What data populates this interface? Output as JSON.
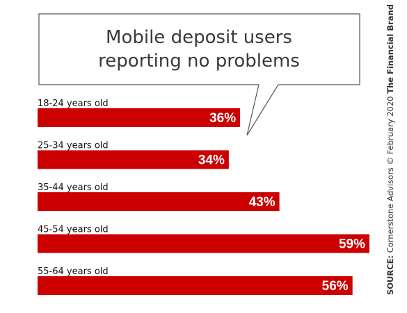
{
  "chart_data": {
    "type": "bar",
    "orientation": "horizontal",
    "title_lines": [
      "Mobile deposit users",
      "reporting no problems"
    ],
    "categories": [
      "18-24 years old",
      "25-34 years old",
      "35-44 years old",
      "45-54 years old",
      "55-64 years old"
    ],
    "values": [
      36,
      34,
      43,
      59,
      56
    ],
    "value_labels": [
      "36%",
      "34%",
      "43%",
      "59%",
      "56%"
    ],
    "xlim": [
      0,
      59
    ],
    "grid": false,
    "legend": "none",
    "bar_color": "#cc0000"
  },
  "source": {
    "prefix": "SOURCE:",
    "text": " Cornerstone Advisors © February 2020 ",
    "brand": "The Financial Brand"
  },
  "colors": {
    "bar": "#cc0000",
    "callout_border": "#555555"
  }
}
